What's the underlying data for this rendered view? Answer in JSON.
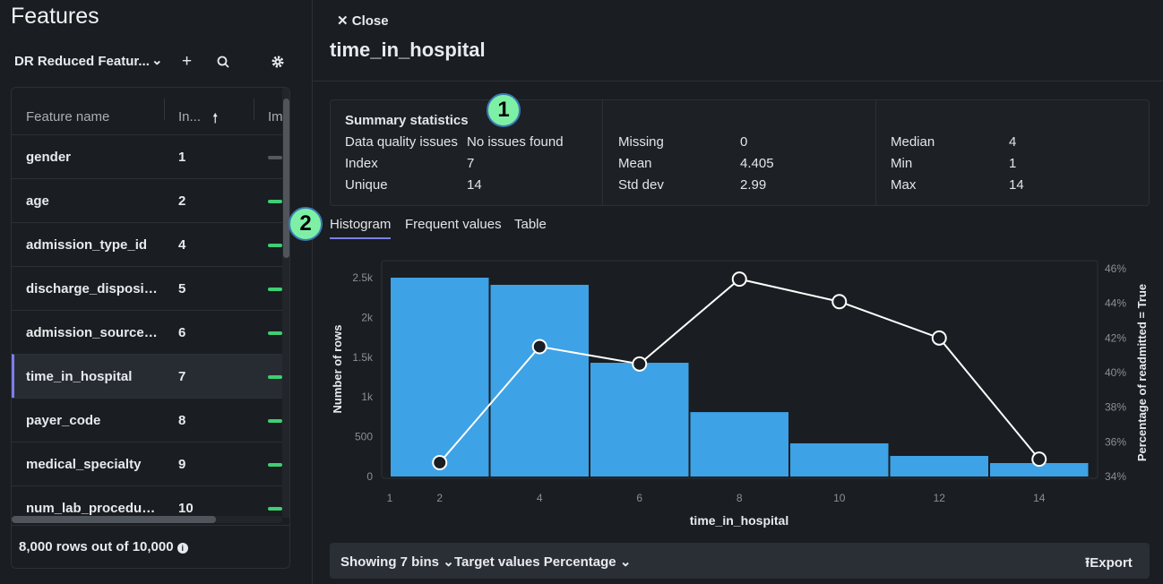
{
  "left": {
    "title": "Features",
    "featurelist": "DR Reduced Featur...",
    "icons": {
      "dropdown": "chevron-down-icon",
      "add": "plus-icon",
      "search": "search-icon",
      "settings": "gear-icon"
    },
    "columns": [
      "Feature name",
      "In...",
      "Im"
    ],
    "rows": [
      {
        "name": "gender",
        "index": "1"
      },
      {
        "name": "age",
        "index": "2"
      },
      {
        "name": "admission_type_id",
        "index": "4"
      },
      {
        "name": "discharge_dispositio...",
        "index": "5"
      },
      {
        "name": "admission_source_id",
        "index": "6"
      },
      {
        "name": "time_in_hospital",
        "index": "7",
        "selected": true
      },
      {
        "name": "payer_code",
        "index": "8"
      },
      {
        "name": "medical_specialty",
        "index": "9"
      },
      {
        "name": "num_lab_procedures",
        "index": "10"
      }
    ],
    "footer": "8,000 rows out of 10,000"
  },
  "detail": {
    "close": "Close",
    "title": "time_in_hospital",
    "stats": {
      "heading": "Summary statistics",
      "col1": [
        [
          "Data quality issues",
          "No issues found"
        ],
        [
          "Index",
          "7"
        ],
        [
          "Unique",
          "14"
        ]
      ],
      "col2": [
        [
          "Missing",
          "0"
        ],
        [
          "Mean",
          "4.405"
        ],
        [
          "Std dev",
          "2.99"
        ]
      ],
      "col3": [
        [
          "Median",
          "4"
        ],
        [
          "Min",
          "1"
        ],
        [
          "Max",
          "14"
        ]
      ]
    },
    "tabs": [
      "Histogram",
      "Frequent values",
      "Table"
    ],
    "active_tab": "Histogram",
    "badges": [
      "1",
      "2"
    ],
    "bottom": {
      "bins": "Showing 7 bins",
      "target": "Target values Percentage",
      "export": "Export"
    }
  },
  "chart_data": {
    "type": "bar+line",
    "xlabel": "time_in_hospital",
    "ylabel": "Number of rows",
    "y2label": "Percentage of readmitted = True",
    "bins": [
      [
        1,
        3
      ],
      [
        3,
        5
      ],
      [
        5,
        7
      ],
      [
        7,
        9
      ],
      [
        9,
        11
      ],
      [
        11,
        13
      ],
      [
        13,
        15
      ]
    ],
    "counts": [
      2500,
      2410,
      1430,
      810,
      417,
      259,
      169
    ],
    "line_x": [
      2,
      4,
      6,
      8,
      10,
      12,
      14
    ],
    "line_pct": [
      34.8,
      41.5,
      40.5,
      45.4,
      44.1,
      42.0,
      35.0
    ],
    "xticks": [
      "1",
      "2",
      "4",
      "6",
      "8",
      "10",
      "12",
      "14"
    ],
    "yticks": [
      "0",
      "500",
      "1k",
      "1.5k",
      "2k",
      "2.5k"
    ],
    "y2ticks": [
      "34%",
      "36%",
      "38%",
      "40%",
      "42%",
      "44%",
      "46%"
    ],
    "ylim": [
      0,
      2500
    ],
    "y2lim": [
      34,
      46
    ],
    "bar_color": "#3ea2e6",
    "line_color": "#ffffff"
  }
}
